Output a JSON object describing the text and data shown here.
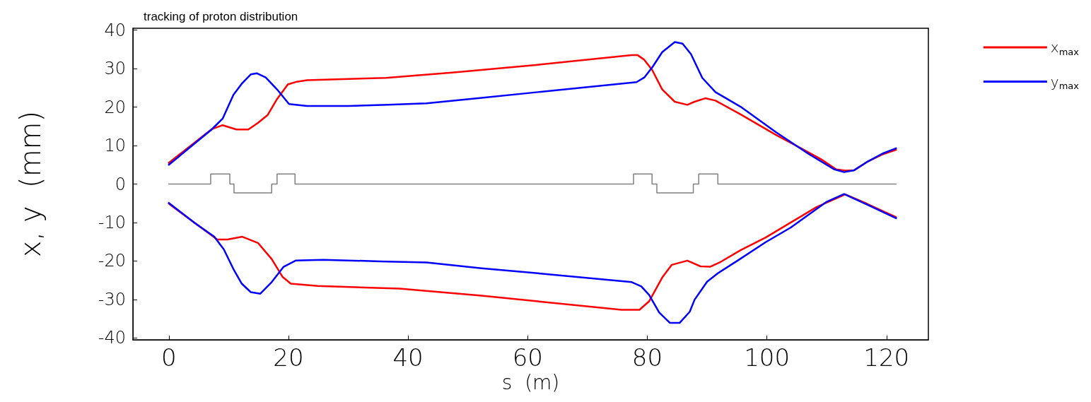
{
  "chart_data": {
    "type": "line",
    "title": "tracking of proton distribution",
    "xlabel": "s  (m)",
    "ylabel": "x, y  (mm)",
    "xlim": [
      -6,
      127
    ],
    "xticks": [
      0,
      20,
      40,
      60,
      80,
      100,
      120
    ],
    "ylim": [
      -40.5,
      40.5
    ],
    "yticks": [
      -40,
      -30,
      -20,
      -10,
      0,
      10,
      20,
      30,
      40
    ],
    "grid": false,
    "legend": "top right",
    "marker": "none",
    "line_style": "solid",
    "series": [
      {
        "name": "x$_{max}$",
        "color": "#ff0000",
        "x": [
          0,
          7.1,
          9,
          11.3,
          13.3,
          14.9,
          16.5,
          18.1,
          19.9,
          21.4,
          23.1,
          36.3,
          47.7,
          61.7,
          77.4,
          78.4,
          79.5,
          80.8,
          82.5,
          84.6,
          86.7,
          87.9,
          89.7,
          91.4,
          95.6,
          101.5,
          105.7,
          109.1,
          111.6,
          113.1,
          114.6,
          116.7,
          119.3,
          121.6
        ],
        "values": [
          5.5,
          14.2,
          15.3,
          14.2,
          14.2,
          15.9,
          17.9,
          22.1,
          25.9,
          26.6,
          27,
          27.6,
          29,
          31,
          33.5,
          33.5,
          32.3,
          29.7,
          24.6,
          21.4,
          20.6,
          21.4,
          22.3,
          21.7,
          18.1,
          12.8,
          9.3,
          6.4,
          3.8,
          3.5,
          3.6,
          5.7,
          7.7,
          8.9
        ]
      },
      {
        "name": "y$_{max}$",
        "color": "#0000ff",
        "x": [
          0,
          7.1,
          9,
          10.8,
          12.2,
          13.7,
          14.7,
          16.2,
          18.1,
          20.1,
          23.1,
          30,
          36.7,
          43.1,
          52.3,
          61.7,
          78.2,
          79.5,
          80.9,
          82.5,
          84.6,
          85.9,
          87.3,
          89.2,
          91.4,
          95.6,
          101.5,
          107,
          111.3,
          112.9,
          114.6,
          116.7,
          119.3,
          121.6
        ],
        "values": [
          5,
          14.1,
          17,
          23.2,
          26.1,
          28.5,
          28.8,
          27.7,
          24.6,
          20.8,
          20.3,
          20.3,
          20.6,
          21,
          22.4,
          23.9,
          26.5,
          27.7,
          30.5,
          34.3,
          36.9,
          36.5,
          33.8,
          27.6,
          23.9,
          20.1,
          13.5,
          7.8,
          3.8,
          3.1,
          3.6,
          5.7,
          7.9,
          9.3
        ]
      },
      {
        "color": "#ff0000",
        "x": [
          0,
          4.4,
          8.1,
          9.8,
          12.3,
          14.9,
          17.2,
          19,
          20.4,
          24.9,
          38.6,
          52.3,
          61.7,
          75.7,
          78.7,
          80.3,
          82.5,
          84.1,
          86.7,
          88.9,
          90.5,
          92.2,
          95.6,
          99.8,
          104,
          108.3,
          113.1,
          116.7,
          121.6
        ],
        "values": [
          -5.1,
          -10.2,
          -14.4,
          -14.4,
          -13.7,
          -15.3,
          -19.5,
          -24.1,
          -25.9,
          -26.5,
          -27.2,
          -29,
          -30.5,
          -32.7,
          -32.7,
          -30.5,
          -24.3,
          -21,
          -19.9,
          -21.4,
          -21.5,
          -20.3,
          -17.2,
          -13.9,
          -10,
          -6,
          -2.7,
          -5.1,
          -8.6
        ]
      },
      {
        "color": "#0000ff",
        "x": [
          0,
          4.4,
          7.6,
          9.2,
          10.8,
          12.2,
          13.7,
          15.3,
          17.2,
          19.2,
          21.2,
          25.8,
          35.4,
          43.1,
          52.3,
          61.7,
          77.4,
          79,
          80.3,
          82,
          83.8,
          85.4,
          87.1,
          87.9,
          90,
          91.8,
          95.1,
          99.8,
          104,
          110,
          112.9,
          116.7,
          121.6
        ],
        "values": [
          -4.9,
          -10.2,
          -13.7,
          -17,
          -22.1,
          -25.9,
          -28.1,
          -28.5,
          -25.5,
          -21.5,
          -19.9,
          -19.7,
          -20.1,
          -20.4,
          -21.9,
          -23.2,
          -25.5,
          -26.6,
          -28.8,
          -33.4,
          -36.1,
          -36.1,
          -33.2,
          -30.1,
          -25.4,
          -23.2,
          -19.9,
          -15.1,
          -11.3,
          -4.6,
          -2.6,
          -5.3,
          -8.9
        ]
      },
      {
        "type": "step",
        "color": "#808080",
        "x": [
          0,
          7,
          10.2,
          10.9,
          17.2,
          18.1,
          21.1,
          77.7,
          80.8,
          81.6,
          87.7,
          88.6,
          91.8,
          121.6
        ],
        "values": [
          0,
          2.6,
          0,
          -2.3,
          0,
          2.6,
          0,
          2.6,
          0,
          -2.3,
          0,
          2.6,
          0,
          0
        ]
      }
    ]
  }
}
